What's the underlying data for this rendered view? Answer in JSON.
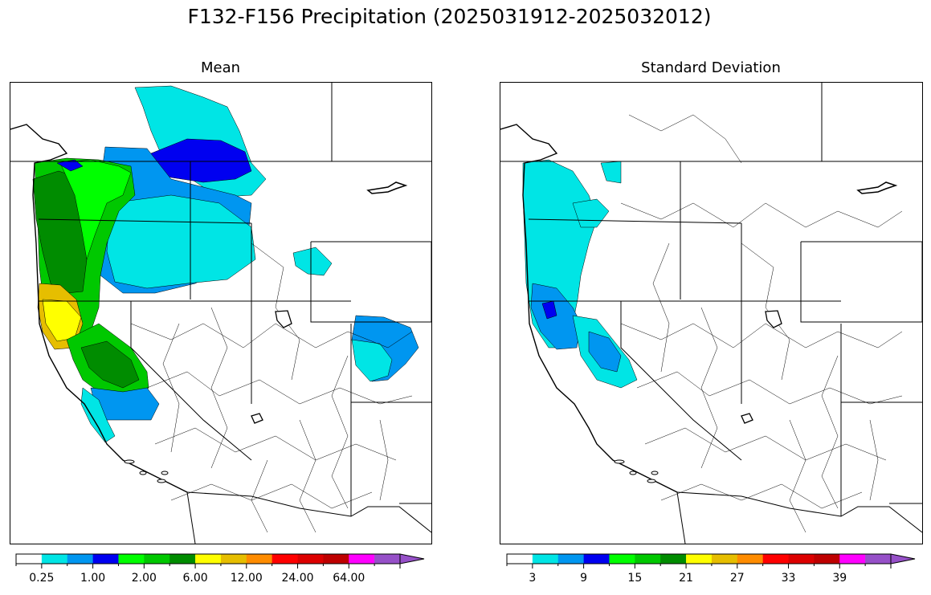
{
  "title": "F132-F156 Precipitation (2025031912-2025032012)",
  "panels": [
    {
      "title": "Mean"
    },
    {
      "title": "Standard Deviation"
    }
  ],
  "colorbars": {
    "mean": {
      "colors": [
        "#ffffff",
        "#00e5e5",
        "#0096f0",
        "#0000f0",
        "#00ff00",
        "#00c800",
        "#008c00",
        "#ffff00",
        "#e6be00",
        "#ff8c00",
        "#ff0000",
        "#dc0000",
        "#be0000",
        "#ff00ff",
        "#9650c8"
      ],
      "tick_labels": [
        "0.25",
        "1.00",
        "2.00",
        "6.00",
        "12.00",
        "24.00",
        "64.00"
      ],
      "extend": "max"
    },
    "sd": {
      "colors": [
        "#ffffff",
        "#00e5e5",
        "#0096f0",
        "#0000f0",
        "#00ff00",
        "#00c800",
        "#008c00",
        "#ffff00",
        "#e6be00",
        "#ff8c00",
        "#ff0000",
        "#dc0000",
        "#be0000",
        "#ff00ff",
        "#9650c8"
      ],
      "tick_labels": [
        "3",
        "9",
        "15",
        "21",
        "27",
        "33",
        "39"
      ],
      "extend": "max"
    }
  }
}
